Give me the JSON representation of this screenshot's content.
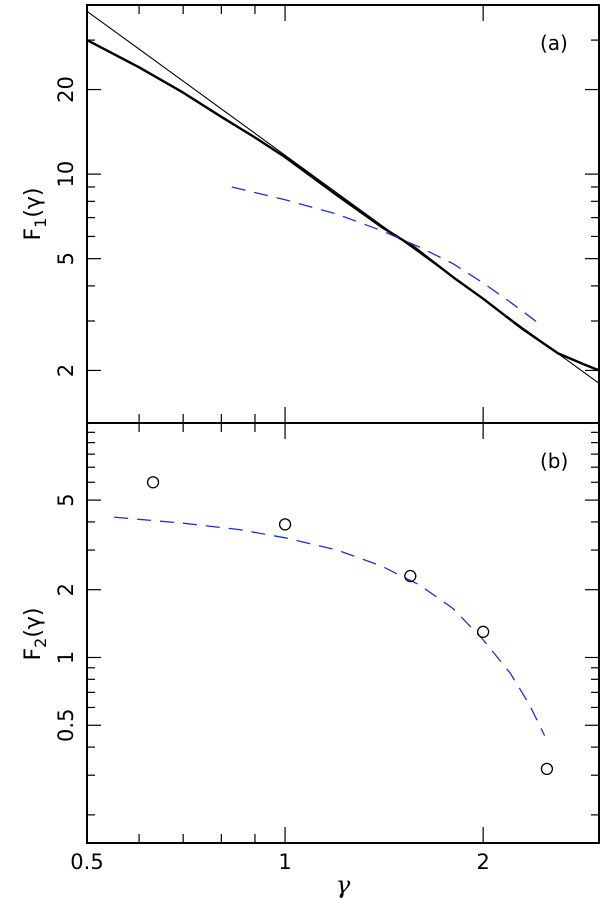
{
  "chart_data": [
    {
      "panel": "a",
      "panel_label": "(a)",
      "type": "line",
      "ylabel_main": "F",
      "ylabel_sub": "1",
      "ylabel_arg": "(γ)",
      "xscale": "log",
      "yscale": "log",
      "xlim": [
        0.5,
        3.0
      ],
      "ylim": [
        1.3,
        40
      ],
      "yticks": [
        2,
        5,
        10,
        20
      ],
      "ytick_labels": [
        "2",
        "5",
        "10",
        "20"
      ],
      "grid": false,
      "series": [
        {
          "style": "solid-thick",
          "color": "#000000",
          "x": [
            0.5,
            0.6,
            0.7,
            0.8,
            0.9,
            1.0,
            1.2,
            1.4,
            1.57,
            1.8,
            2.0,
            2.3,
            2.6,
            2.85,
            3.0
          ],
          "y": [
            30.0,
            24.0,
            19.5,
            16.0,
            13.5,
            11.5,
            8.4,
            6.5,
            5.5,
            4.3,
            3.6,
            2.8,
            2.3,
            2.1,
            2.0
          ]
        },
        {
          "style": "solid-thin",
          "color": "#000000",
          "x": [
            0.5,
            3.0
          ],
          "y": [
            38.0,
            1.8
          ]
        },
        {
          "style": "dashed",
          "color": "#1f2fd0",
          "x": [
            0.83,
            1.0,
            1.2,
            1.4,
            1.6,
            1.8,
            2.0,
            2.2,
            2.45
          ],
          "y": [
            9.0,
            8.1,
            7.2,
            6.3,
            5.5,
            4.8,
            4.1,
            3.5,
            2.9
          ]
        }
      ]
    },
    {
      "panel": "b",
      "panel_label": "(b)",
      "type": "scatter",
      "ylabel_main": "F",
      "ylabel_sub": "2",
      "ylabel_arg": "(γ)",
      "xlabel": "γ",
      "xscale": "log",
      "yscale": "log",
      "xlim": [
        0.5,
        3.0
      ],
      "ylim": [
        0.15,
        11
      ],
      "xticks": [
        0.5,
        1,
        2
      ],
      "xtick_labels": [
        "0.5",
        "1",
        "2"
      ],
      "yticks": [
        0.5,
        1,
        2,
        5
      ],
      "ytick_labels": [
        "0.5",
        "1",
        "2",
        "5"
      ],
      "grid": false,
      "points": {
        "x": [
          0.63,
          1.0,
          1.55,
          2.0,
          2.5
        ],
        "y": [
          6.0,
          3.9,
          2.3,
          1.3,
          0.32
        ]
      },
      "series": [
        {
          "style": "dashed",
          "color": "#1f2fd0",
          "x": [
            0.55,
            0.7,
            0.85,
            1.0,
            1.2,
            1.4,
            1.6,
            1.8,
            2.0,
            2.2,
            2.35,
            2.48
          ],
          "y": [
            4.2,
            3.95,
            3.7,
            3.4,
            3.0,
            2.55,
            2.1,
            1.65,
            1.2,
            0.85,
            0.62,
            0.45
          ]
        }
      ]
    }
  ]
}
